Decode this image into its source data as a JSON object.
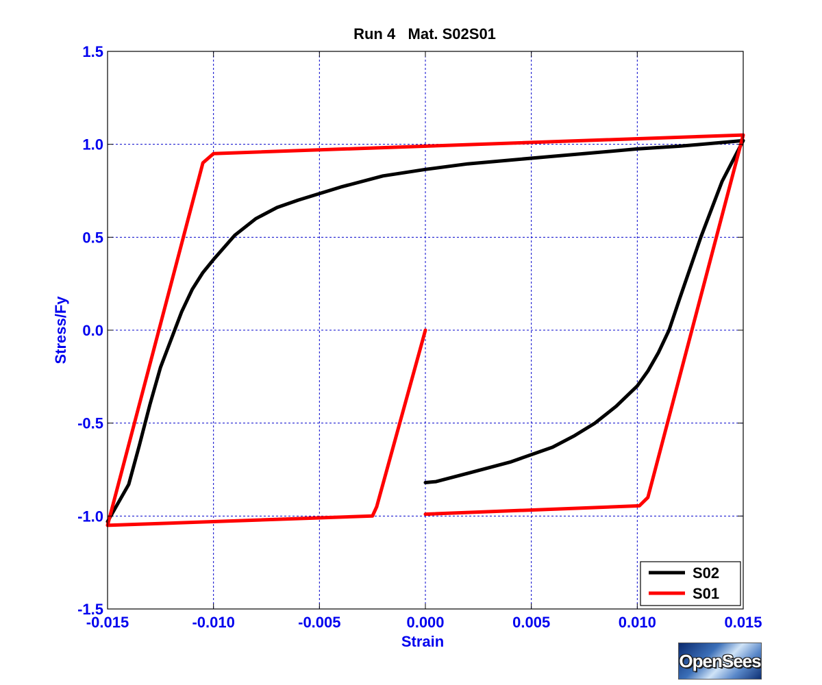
{
  "chart_data": {
    "type": "line",
    "title": "Run 4   Mat. S02S01",
    "xlabel": "Strain",
    "ylabel": "Stress/Fy",
    "xlim": [
      -0.015,
      0.015
    ],
    "ylim": [
      -1.5,
      1.5
    ],
    "xticks": [
      -0.015,
      -0.01,
      -0.005,
      0.0,
      0.005,
      0.01,
      0.015
    ],
    "xtick_labels": [
      "-0.015",
      "-0.010",
      "-0.005",
      "0.000",
      "0.005",
      "0.010",
      "0.015"
    ],
    "yticks": [
      -1.5,
      -1.0,
      -0.5,
      0.0,
      0.5,
      1.0,
      1.5
    ],
    "ytick_labels": [
      "-1.5",
      "-1.0",
      "-0.5",
      "0.0",
      "0.5",
      "1.0",
      "1.5"
    ],
    "grid": true,
    "legend_position": "bottom-right",
    "colors": {
      "axis_text": "#0000ee",
      "grid": "#0000cc",
      "title": "#000000"
    },
    "series": [
      {
        "name": "S02",
        "color": "#000000",
        "x": [
          0.0,
          0.0005,
          0.002,
          0.004,
          0.006,
          0.007,
          0.008,
          0.009,
          0.01,
          0.0105,
          0.011,
          0.0115,
          0.012,
          0.013,
          0.014,
          0.015,
          0.014,
          0.012,
          0.01,
          0.008,
          0.006,
          0.004,
          0.002,
          0.0,
          -0.002,
          -0.004,
          -0.006,
          -0.007,
          -0.008,
          -0.009,
          -0.01,
          -0.0105,
          -0.011,
          -0.0115,
          -0.012,
          -0.0125,
          -0.013,
          -0.0135,
          -0.014,
          -0.015
        ],
        "y": [
          -0.82,
          -0.815,
          -0.77,
          -0.71,
          -0.63,
          -0.57,
          -0.5,
          -0.41,
          -0.3,
          -0.22,
          -0.12,
          0.0,
          0.17,
          0.5,
          0.8,
          1.02,
          1.01,
          0.99,
          0.975,
          0.955,
          0.935,
          0.915,
          0.895,
          0.865,
          0.83,
          0.77,
          0.7,
          0.66,
          0.6,
          0.51,
          0.38,
          0.31,
          0.22,
          0.1,
          -0.05,
          -0.2,
          -0.4,
          -0.62,
          -0.83,
          -1.03
        ]
      },
      {
        "name": "S01",
        "color": "#ff0000",
        "x": [
          0.0,
          -0.0023,
          -0.0025,
          -0.015,
          -0.0105,
          -0.01,
          0.015,
          0.0105,
          0.0101,
          0.0,
          0.0
        ],
        "y": [
          0.0,
          -0.95,
          -1.0,
          -1.05,
          0.9,
          0.95,
          1.05,
          -0.9,
          -0.945,
          -0.99,
          -0.99
        ]
      }
    ]
  },
  "logo": {
    "text": "OpenSees"
  }
}
